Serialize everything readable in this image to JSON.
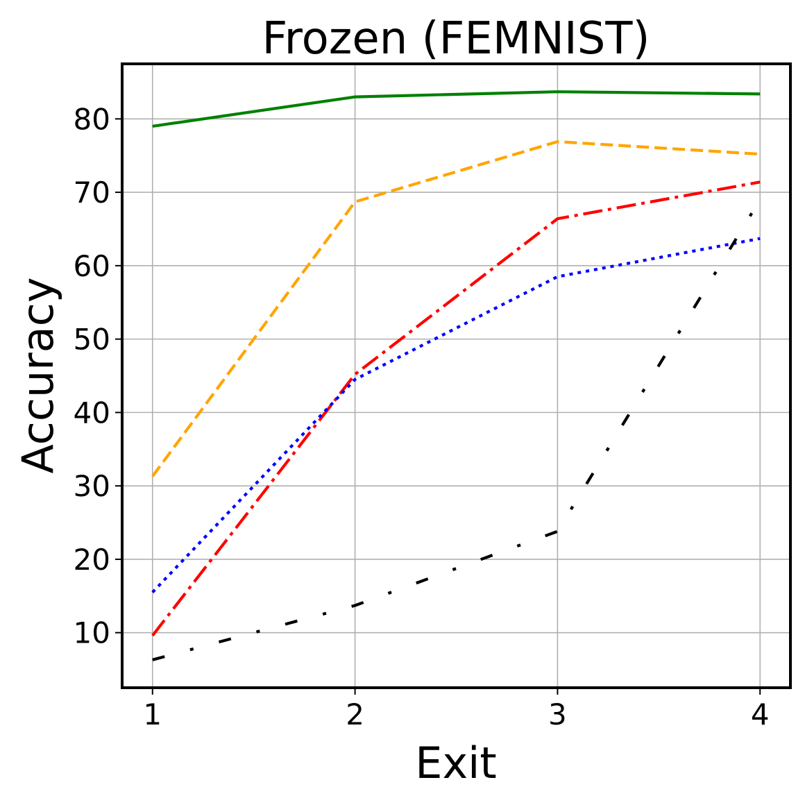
{
  "chart_data": {
    "type": "line",
    "title": "Frozen (FEMNIST)",
    "xlabel": "Exit",
    "ylabel": "Accuracy",
    "x": [
      1,
      2,
      3,
      4
    ],
    "xlim": [
      0.85,
      4.15
    ],
    "ylim": [
      2.5,
      87.5
    ],
    "xticks": [
      1,
      2,
      3,
      4
    ],
    "yticks": [
      10,
      20,
      30,
      40,
      50,
      60,
      70,
      80
    ],
    "grid": true,
    "series": [
      {
        "values": [
          79.0,
          83.0,
          83.7,
          83.4
        ],
        "color": "#008000",
        "style": "solid"
      },
      {
        "values": [
          31.3,
          68.7,
          76.9,
          75.2
        ],
        "color": "#FFA500",
        "style": "dashed"
      },
      {
        "values": [
          9.6,
          45.2,
          66.4,
          71.4
        ],
        "color": "#FF0000",
        "style": "dashdot"
      },
      {
        "values": [
          15.5,
          44.5,
          58.5,
          63.7
        ],
        "color": "#0000FF",
        "style": "dotted"
      },
      {
        "values": [
          6.3,
          13.7,
          23.8,
          69.0
        ],
        "color": "#000000",
        "style": "loosely-dashdot"
      }
    ]
  }
}
